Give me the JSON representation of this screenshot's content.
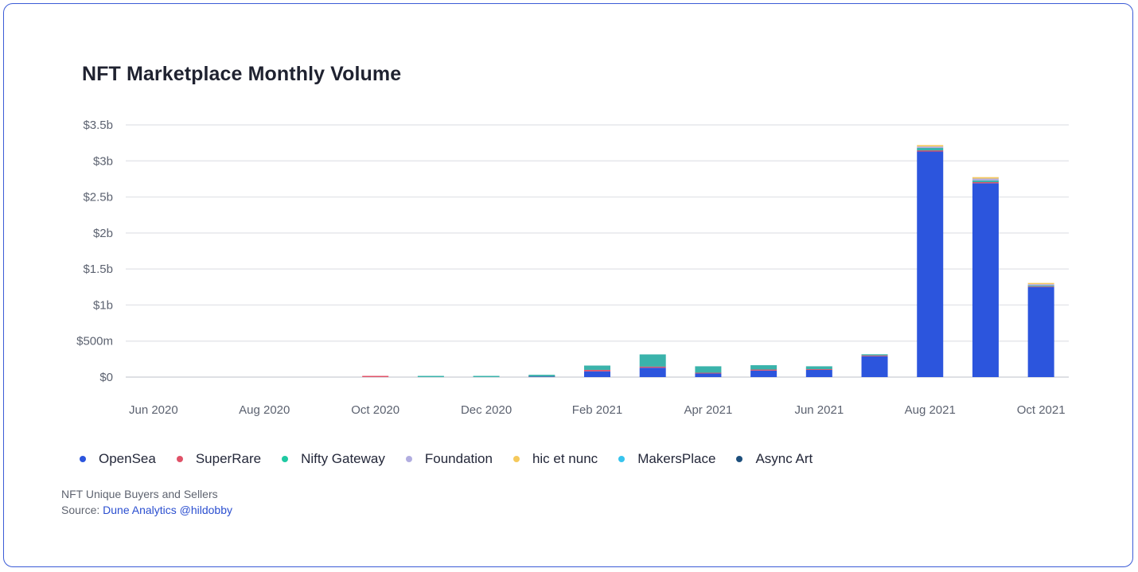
{
  "title": "NFT Marketplace Monthly Volume",
  "footnote": {
    "line1": "NFT Unique Buyers and Sellers",
    "source_prefix": "Source: ",
    "source_link": "Dune Analytics @hildobby"
  },
  "colors": {
    "OpenSea": "#2c55dd",
    "SuperRare": "#e05268",
    "Nifty Gateway": "#3ab3ab",
    "Foundation": "#b1ade0",
    "hic et nunc": "#f5c95c",
    "MakersPlace": "#37c4ee",
    "Async Art": "#1d4f7c"
  },
  "legend": [
    {
      "name": "OpenSea",
      "color": "#2c55dd"
    },
    {
      "name": "SuperRare",
      "color": "#e05268"
    },
    {
      "name": "Nifty Gateway",
      "color": "#1fc9a2"
    },
    {
      "name": "Foundation",
      "color": "#b1ade0"
    },
    {
      "name": "hic et nunc",
      "color": "#f5c95c"
    },
    {
      "name": "MakersPlace",
      "color": "#37c4ee"
    },
    {
      "name": "Async Art",
      "color": "#1d4f7c"
    }
  ],
  "chart_data": {
    "type": "bar",
    "stacked": true,
    "title": "NFT Marketplace Monthly Volume",
    "xlabel": "",
    "ylabel": "",
    "ylim": [
      0,
      3500000000
    ],
    "yticks": [
      "$0",
      "$500m",
      "$1b",
      "$1.5b",
      "$2b",
      "$2.5b",
      "$3b",
      "$3.5b"
    ],
    "grid": true,
    "legend_position": "bottom",
    "categories": [
      "Jun 2020",
      "Jul 2020",
      "Aug 2020",
      "Sep 2020",
      "Oct 2020",
      "Nov 2020",
      "Dec 2020",
      "Jan 2021",
      "Feb 2021",
      "Mar 2021",
      "Apr 2021",
      "May 2021",
      "Jun 2021",
      "Jul 2021",
      "Aug 2021",
      "Sep 2021",
      "Oct 2021"
    ],
    "xtick_labels": [
      "Jun 2020",
      "Aug 2020",
      "Oct 2020",
      "Dec 2020",
      "Feb 2021",
      "Apr 2021",
      "Jun 2021",
      "Aug 2021",
      "Oct 2021"
    ],
    "series": [
      {
        "name": "OpenSea",
        "values": [
          0,
          0,
          0,
          0,
          0,
          0,
          0,
          5000000,
          80000000,
          130000000,
          50000000,
          90000000,
          100000000,
          290000000,
          3130000000,
          2690000000,
          1250000000
        ]
      },
      {
        "name": "SuperRare",
        "values": [
          0,
          0,
          0,
          0,
          15000000,
          0,
          0,
          2000000,
          20000000,
          15000000,
          10000000,
          15000000,
          10000000,
          10000000,
          15000000,
          15000000,
          8000000
        ]
      },
      {
        "name": "Nifty Gateway",
        "values": [
          0,
          0,
          0,
          0,
          0,
          8000000,
          12000000,
          25000000,
          60000000,
          170000000,
          90000000,
          60000000,
          40000000,
          15000000,
          35000000,
          25000000,
          12000000
        ]
      },
      {
        "name": "Foundation",
        "values": [
          0,
          0,
          0,
          0,
          0,
          0,
          0,
          0,
          0,
          0,
          0,
          0,
          0,
          0,
          20000000,
          25000000,
          20000000
        ]
      },
      {
        "name": "hic et nunc",
        "values": [
          0,
          0,
          0,
          0,
          0,
          0,
          0,
          0,
          0,
          0,
          0,
          0,
          0,
          0,
          20000000,
          20000000,
          5000000
        ]
      },
      {
        "name": "MakersPlace",
        "values": [
          0,
          0,
          0,
          0,
          0,
          0,
          0,
          0,
          0,
          0,
          0,
          0,
          0,
          0,
          0,
          0,
          0
        ]
      },
      {
        "name": "Async Art",
        "values": [
          0,
          0,
          0,
          0,
          0,
          0,
          0,
          0,
          0,
          0,
          0,
          0,
          0,
          0,
          0,
          0,
          0
        ]
      }
    ]
  }
}
